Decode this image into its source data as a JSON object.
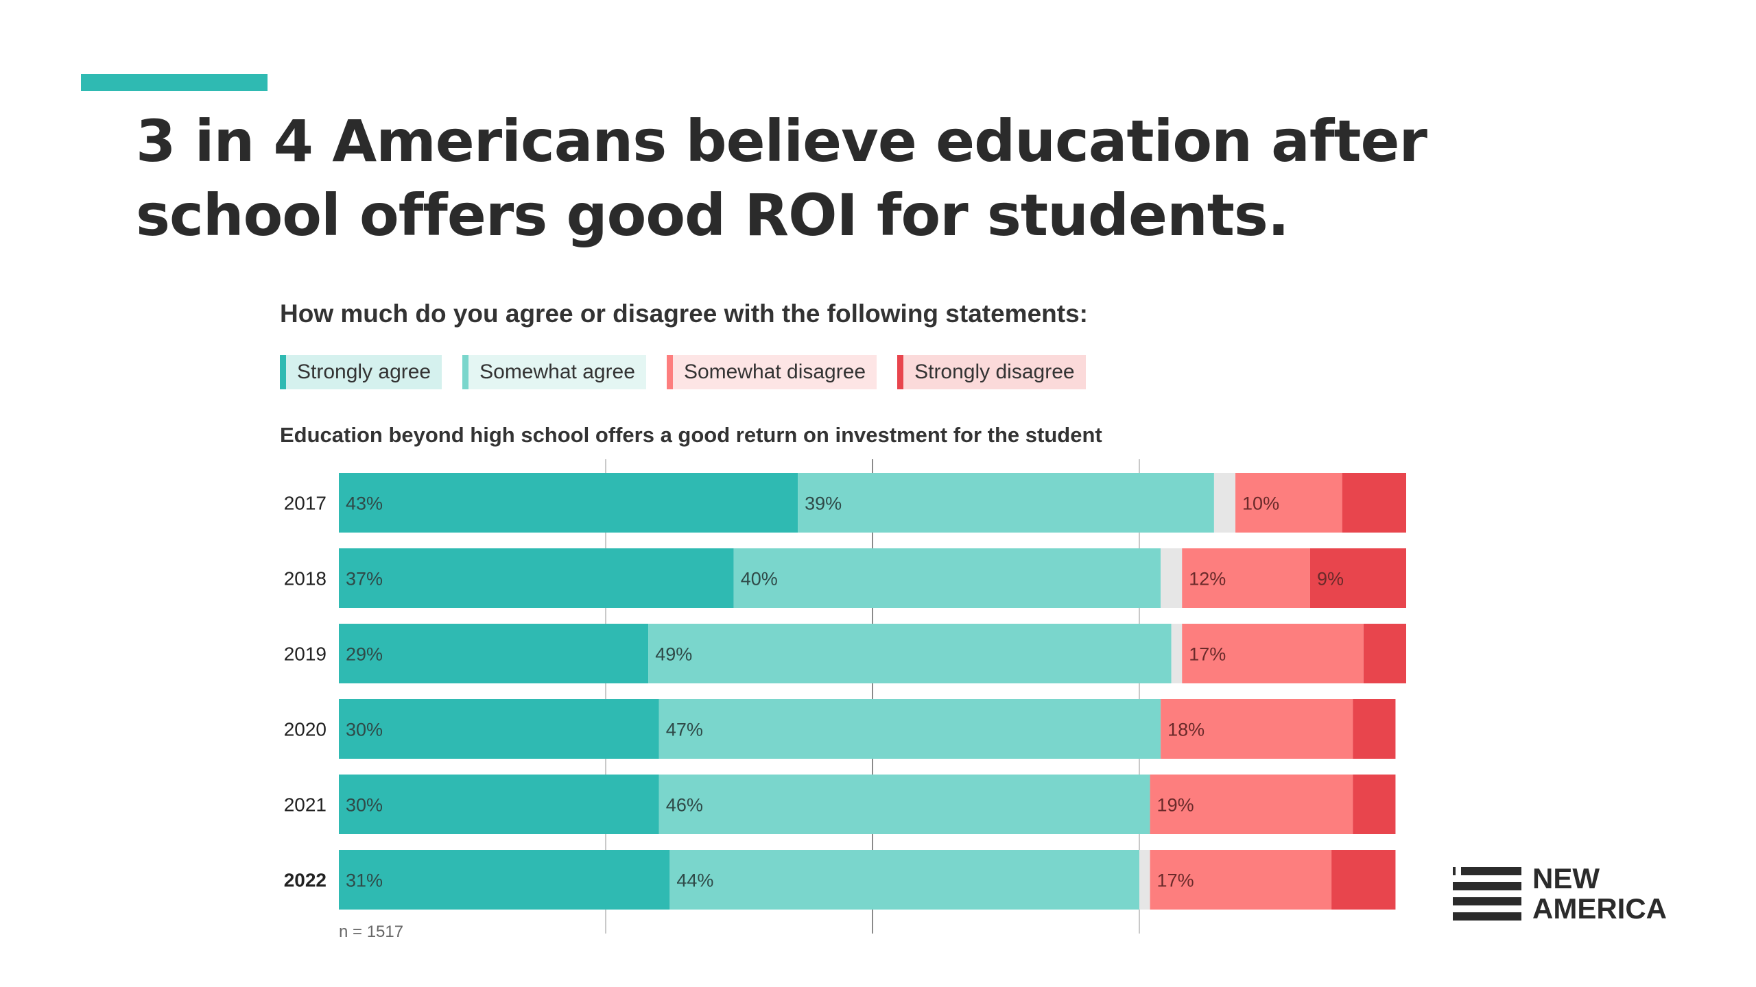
{
  "header": {
    "title": "3 in 4 Americans believe education after school offers good ROI for students."
  },
  "subtitle": "How much do you agree or disagree with the following statements:",
  "colors": {
    "accent": "#2fbab2",
    "strongly_agree": "#2fbab2",
    "somewhat_agree": "#7ad6cc",
    "neutral": "#e6e6e6",
    "somewhat_disagree": "#fd7e7e",
    "strongly_disagree": "#e8454d"
  },
  "legend": [
    {
      "label": "Strongly agree",
      "color": "#2fbab2",
      "bg": "#d5f1ee"
    },
    {
      "label": "Somewhat agree",
      "color": "#7ad6cc",
      "bg": "#e4f6f3"
    },
    {
      "label": "Somewhat disagree",
      "color": "#fd7e7e",
      "bg": "#fde5e5"
    },
    {
      "label": "Strongly disagree",
      "color": "#e8454d",
      "bg": "#fbdada"
    }
  ],
  "chart_data": {
    "type": "bar",
    "orientation": "horizontal",
    "stacked": true,
    "title": "Education beyond high school offers a good return on investment for the student",
    "categories": [
      "2017",
      "2018",
      "2019",
      "2020",
      "2021",
      "2022"
    ],
    "highlight_category": "2022",
    "series": [
      {
        "name": "Strongly agree",
        "values": [
          43,
          37,
          29,
          30,
          30,
          31
        ],
        "labels": [
          "43%",
          "37%",
          "29%",
          "30%",
          "30%",
          "31%"
        ]
      },
      {
        "name": "Somewhat agree",
        "values": [
          39,
          40,
          49,
          47,
          46,
          44
        ],
        "labels": [
          "39%",
          "40%",
          "49%",
          "47%",
          "46%",
          "44%"
        ]
      },
      {
        "name": "",
        "values": [
          2,
          2,
          1,
          0,
          0,
          1
        ],
        "labels": [
          "",
          "",
          "",
          "",
          "",
          ""
        ]
      },
      {
        "name": "Somewhat disagree",
        "values": [
          10,
          12,
          17,
          18,
          19,
          17
        ],
        "labels": [
          "10%",
          "12%",
          "17%",
          "18%",
          "19%",
          "17%"
        ]
      },
      {
        "name": "Strongly disagree",
        "values": [
          6,
          9,
          4,
          4,
          4,
          6
        ],
        "labels": [
          "",
          "9%",
          "",
          "",
          "",
          ""
        ]
      }
    ],
    "note": "n = 1517",
    "grid": true,
    "gridlines_at": [
      25,
      50,
      75
    ],
    "xlim": [
      0,
      100
    ],
    "legend_position": "top-left"
  },
  "logo": {
    "line1": "NEW",
    "line2": "AMERICA"
  }
}
